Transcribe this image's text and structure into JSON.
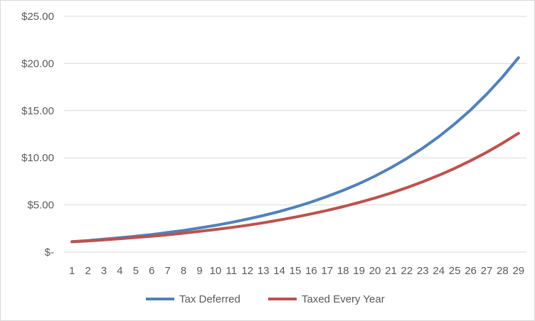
{
  "chart_data": {
    "type": "line",
    "title": "",
    "xlabel": "",
    "ylabel": "",
    "categories": [
      "1",
      "2",
      "3",
      "4",
      "5",
      "6",
      "7",
      "8",
      "9",
      "10",
      "11",
      "12",
      "13",
      "14",
      "15",
      "16",
      "17",
      "18",
      "19",
      "20",
      "21",
      "22",
      "23",
      "24",
      "25",
      "26",
      "27",
      "28",
      "29"
    ],
    "ylim": [
      0,
      25
    ],
    "yticks": [
      0,
      5,
      10,
      15,
      20,
      25
    ],
    "ytick_labels": [
      "$-",
      "$5.00",
      "$10.00",
      "$15.00",
      "$20.00",
      "$25.00"
    ],
    "grid": true,
    "legend_position": "bottom",
    "series": [
      {
        "name": "Tax Deferred",
        "color": "#4F81BD",
        "values": [
          1.11,
          1.23,
          1.37,
          1.52,
          1.69,
          1.87,
          2.08,
          2.3,
          2.56,
          2.84,
          3.15,
          3.5,
          3.88,
          4.31,
          4.78,
          5.31,
          5.9,
          6.54,
          7.26,
          8.06,
          8.95,
          9.93,
          11.03,
          12.24,
          13.59,
          15.08,
          16.74,
          18.58,
          20.62
        ]
      },
      {
        "name": "Taxed Every Year",
        "color": "#C0504D",
        "values": [
          1.09,
          1.19,
          1.3,
          1.42,
          1.55,
          1.69,
          1.84,
          2.01,
          2.2,
          2.4,
          2.61,
          2.85,
          3.11,
          3.4,
          3.71,
          4.05,
          4.42,
          4.82,
          5.26,
          5.74,
          6.26,
          6.84,
          7.46,
          8.14,
          8.88,
          9.7,
          10.58,
          11.55,
          12.6
        ]
      }
    ]
  }
}
